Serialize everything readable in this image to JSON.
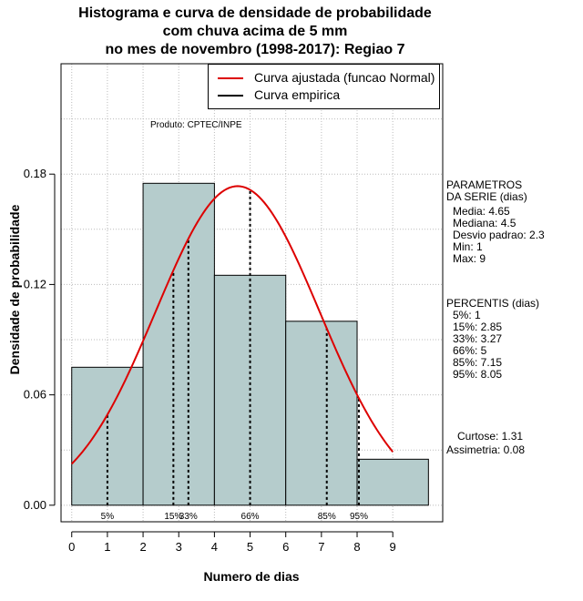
{
  "title": {
    "line1": "Histograma e curva de densidade de probabilidade",
    "line2": "com chuva acima de 5 mm",
    "line3": "no mes de novembro (1998-2017): Regiao 7"
  },
  "produto": "Produto: CPTEC/INPE",
  "legend": {
    "fitted": "Curva ajustada (funcao Normal)",
    "empirical": "Curva empirica"
  },
  "colors": {
    "bar_fill": "#b5cccc",
    "fitted_curve": "#dd0000",
    "grid": "#bbbbbb"
  },
  "parameters": {
    "heading1": "PARAMETROS",
    "heading2": "DA SERIE (dias)",
    "media": "Media: 4.65",
    "mediana": "Mediana: 4.5",
    "desvio": "Desvio padrao: 2.3",
    "min": "Min: 1",
    "max": "Max: 9"
  },
  "percentis": {
    "heading": "PERCENTIS (dias)",
    "p5": "5%: 1",
    "p15": "15%: 2.85",
    "p33": "33%: 3.27",
    "p66": "66%: 5",
    "p85": "85%: 7.15",
    "p95": "95%: 8.05"
  },
  "shape": {
    "curtose": "Curtose: 1.31",
    "assimetria": "Assimetria: 0.08"
  },
  "chart_data": {
    "type": "bar",
    "title": "Histograma e curva de densidade de probabilidade com chuva acima de 5 mm no mes de novembro (1998-2017): Regiao 7",
    "xlabel": "Numero de dias",
    "ylabel": "Densidade de probabilidade",
    "xlim": [
      -0.3,
      10.4
    ],
    "ylim": [
      -0.009,
      0.24
    ],
    "x_ticks": [
      0,
      1,
      2,
      3,
      4,
      5,
      6,
      7,
      8,
      9
    ],
    "y_ticks": [
      0.0,
      0.06,
      0.12,
      0.18
    ],
    "y_tick_labels": [
      "0.00",
      "0.06",
      "0.12",
      "0.18"
    ],
    "bins": [
      {
        "from": 0,
        "to": 2,
        "density": 0.075
      },
      {
        "from": 2,
        "to": 4,
        "density": 0.175
      },
      {
        "from": 4,
        "to": 6,
        "density": 0.125
      },
      {
        "from": 6,
        "to": 8,
        "density": 0.1
      },
      {
        "from": 8,
        "to": 10,
        "density": 0.025
      }
    ],
    "normal_fit": {
      "mean": 4.65,
      "sd": 2.3,
      "x_from": 0,
      "x_to": 9
    },
    "percentile_lines": [
      {
        "label": "5%",
        "x": 1
      },
      {
        "label": "15%",
        "x": 2.85
      },
      {
        "label": "33%",
        "x": 3.27
      },
      {
        "label": "66%",
        "x": 5
      },
      {
        "label": "85%",
        "x": 7.15
      },
      {
        "label": "95%",
        "x": 8.05
      }
    ],
    "grid": true,
    "legend_position": "top-right"
  }
}
